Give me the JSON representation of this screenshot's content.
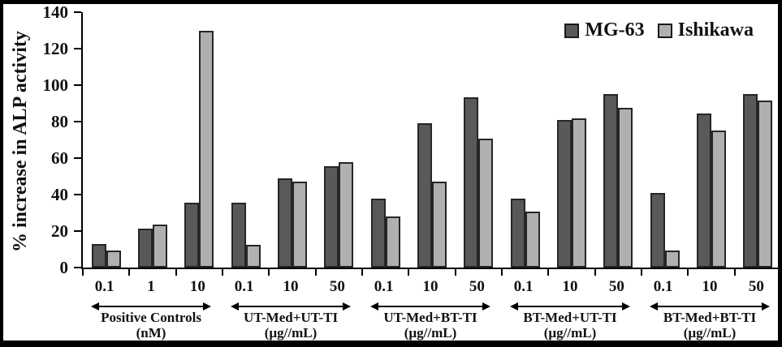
{
  "chart_data": {
    "type": "bar",
    "title": "",
    "ylabel": "% increase in ALP activity",
    "xlabel": "",
    "ylim": [
      0,
      140
    ],
    "yticks": [
      0,
      20,
      40,
      60,
      80,
      100,
      120,
      140
    ],
    "grid": false,
    "legend_position": "top-right",
    "bar_outline_color": "#262626",
    "series": [
      {
        "name": "MG-63",
        "color": "#595959"
      },
      {
        "name": "Ishikawa",
        "color": "#b0b0b0"
      }
    ],
    "groups": [
      {
        "label": "Positive Controls",
        "unit": "(nM)",
        "categories": [
          "0.1",
          "1",
          "10"
        ],
        "values": [
          [
            13,
            21.5,
            35.5
          ],
          [
            9.5,
            23.5,
            130
          ]
        ]
      },
      {
        "label": "UT-Med+UT-TI",
        "unit": "(µg//mL)",
        "categories": [
          "0.1",
          "10",
          "50"
        ],
        "values": [
          [
            35.5,
            49,
            55.5
          ],
          [
            12.5,
            47,
            58
          ]
        ]
      },
      {
        "label": "UT-Med+BT-TI",
        "unit": "(µg//mL)",
        "categories": [
          "0.1",
          "10",
          "50"
        ],
        "values": [
          [
            38,
            79,
            93.5
          ],
          [
            28,
            47,
            70.5
          ]
        ]
      },
      {
        "label": "BT-Med+UT-TI",
        "unit": "(µg//mL)",
        "categories": [
          "0.1",
          "10",
          "50"
        ],
        "values": [
          [
            38,
            81,
            95
          ],
          [
            30.5,
            82,
            87.5
          ]
        ]
      },
      {
        "label": "BT-Med+BT-TI",
        "unit": "(µg//mL)",
        "categories": [
          "0.1",
          "10",
          "50"
        ],
        "values": [
          [
            41,
            84.5,
            95
          ],
          [
            9.5,
            75,
            91.5
          ]
        ]
      }
    ]
  }
}
